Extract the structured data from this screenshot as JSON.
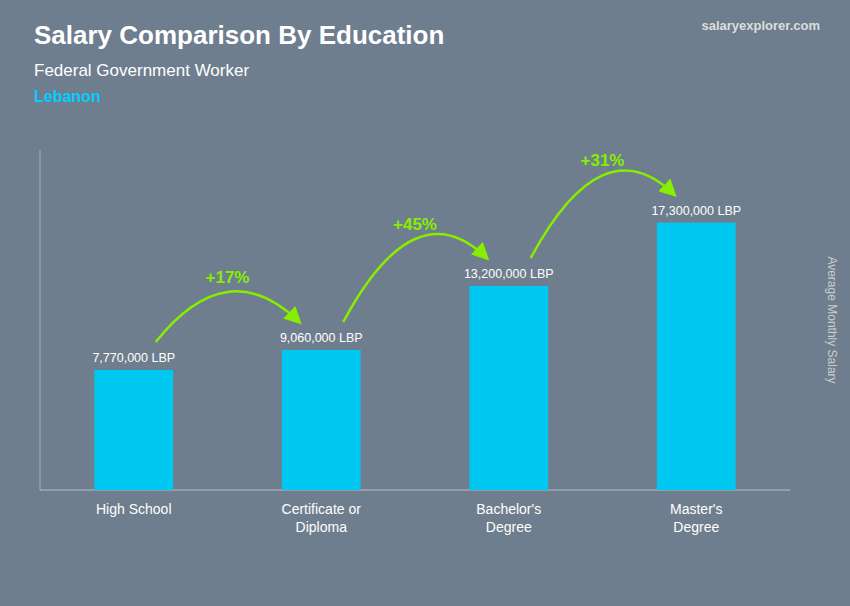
{
  "chart_data": {
    "type": "bar",
    "title": "Salary Comparison By Education",
    "subtitle": [
      "Federal Government Worker",
      "Lebanon"
    ],
    "source": "salaryexplorer.com",
    "y_label": "Average Monthly Salary",
    "categories": [
      "High School",
      "Certificate or\nDiploma",
      "Bachelor's\nDegree",
      "Master's\nDegree"
    ],
    "values": [
      7770000,
      9060000,
      13200000,
      17300000
    ],
    "value_labels": [
      "7,770,000 LBP",
      "9,060,000 LBP",
      "13,200,000 LBP",
      "17,300,000 LBP"
    ],
    "data_labels": true,
    "annotations": [
      {
        "text": "+17%",
        "from": 0,
        "to": 1
      },
      {
        "text": "+45%",
        "from": 1,
        "to": 2
      },
      {
        "text": "+31%",
        "from": 2,
        "to": 3
      }
    ],
    "color": "#00c8f0",
    "ylim": [
      0,
      22000000
    ],
    "grid": false,
    "tick_labels": "x"
  }
}
